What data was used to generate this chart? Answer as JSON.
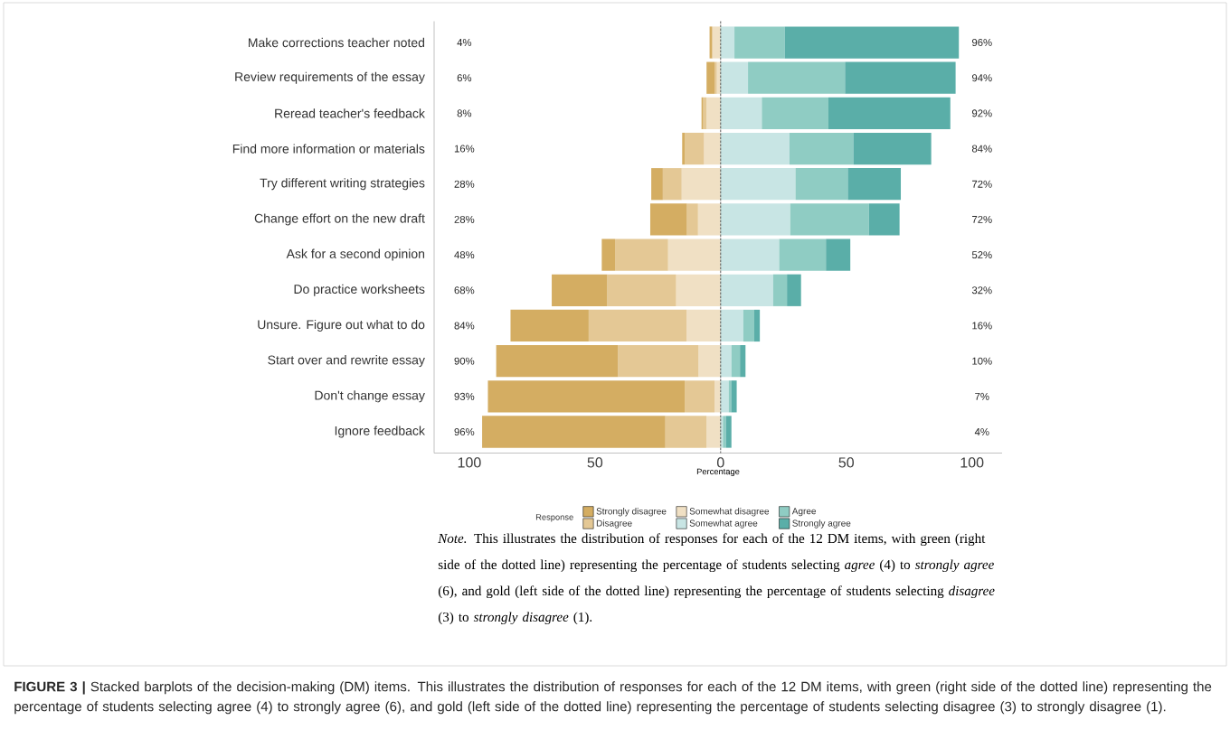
{
  "chart_data": {
    "type": "bar",
    "orientation": "horizontal",
    "stacked": true,
    "categories": [
      "Make corrections teacher noted",
      "Review requirements of the essay",
      "Reread teacher's feedback",
      "Find more information or materials",
      "Try different writing strategies",
      "Change effort on the new draft",
      "Ask for a second opinion",
      "Do practice worksheets",
      "Unsure. Figure out what to do",
      "Start over and rewrite essay",
      "Don't change essay",
      "Ignore feedback"
    ],
    "series": [
      {
        "name": "Somewhat disagree",
        "color": "#f0e0c4",
        "values": [
          -3.2,
          -1.5,
          -5.6,
          -6.6,
          -15.5,
          -9,
          -20.9,
          -17.7,
          -13.6,
          -8.8,
          -2.4,
          -5.6
        ]
      },
      {
        "name": "Disagree",
        "color": "#e4c895",
        "values": [
          -0.2,
          -0.9,
          -1.3,
          -7.7,
          -7.5,
          -4.4,
          -21.1,
          -27.4,
          -38.9,
          -32,
          -11.9,
          -16.4
        ]
      },
      {
        "name": "Strongly disagree",
        "color": "#d4ad62",
        "values": [
          -1,
          -3.2,
          -0.7,
          -1,
          -4.6,
          -14.6,
          -5.3,
          -22.1,
          -31.1,
          -48.5,
          -78.3,
          -72.9
        ]
      },
      {
        "name": "Somewhat agree",
        "color": "#c8e5e4",
        "values": [
          5.5,
          10.9,
          16.4,
          27.4,
          29.8,
          27.7,
          23.3,
          20.9,
          9,
          4.3,
          3.2,
          0.9
        ]
      },
      {
        "name": "Agree",
        "color": "#8fccc3",
        "values": [
          20,
          38.6,
          26.5,
          25.4,
          20.8,
          31.3,
          18.6,
          5.5,
          4.4,
          3.4,
          1,
          1.2
        ]
      },
      {
        "name": "Strongly agree",
        "color": "#5aaea8",
        "values": [
          69.3,
          44,
          48.5,
          31,
          21.1,
          12.2,
          9.7,
          5.6,
          2.2,
          2.2,
          2.2,
          2.2
        ]
      }
    ],
    "xlim": [
      -114,
      112
    ],
    "xticks": [
      {
        "value": -100,
        "label": "100"
      },
      {
        "value": -50,
        "label": "50"
      },
      0,
      50,
      100
    ],
    "xlabel": "Percentage",
    "legend": "bottom",
    "legend_title": "Response",
    "ref_lines": [
      {
        "axis": "x",
        "value": 0,
        "line_style": "dashed"
      }
    ],
    "annotations": [
      "4%",
      "6%",
      "8%",
      "16%",
      "28%",
      "28%",
      "48%",
      "68%",
      "84%",
      "90%",
      "93%",
      "96%",
      "96%",
      "94%",
      "92%",
      "84%",
      "72%",
      "72%",
      "52%",
      "32%",
      "16%",
      "10%",
      "7%",
      "4%",
      "*Note.* This illustrates the distribution of responses for each of the 12 DM items, with green (right side of the dotted line) representing the percentage of students selecting *agree* (4) to *strongly agree* (6), and gold (left side of the dotted line) representing the percentage of students selecting *disagree* (3) to *strongly disagree* (1).",
      "**FIGURE 3 |** Stacked barplots of the decision-making (DM) items. This illustrates the distribution of responses for each of the 12 DM items, with green (right side of the dotted line) representing the percentage of students selecting agree (4) to strongly agree (6), and gold (left side of the dotted line) representing the percentage of students selecting disagree (3) to strongly disagree (1)."
    ]
  }
}
